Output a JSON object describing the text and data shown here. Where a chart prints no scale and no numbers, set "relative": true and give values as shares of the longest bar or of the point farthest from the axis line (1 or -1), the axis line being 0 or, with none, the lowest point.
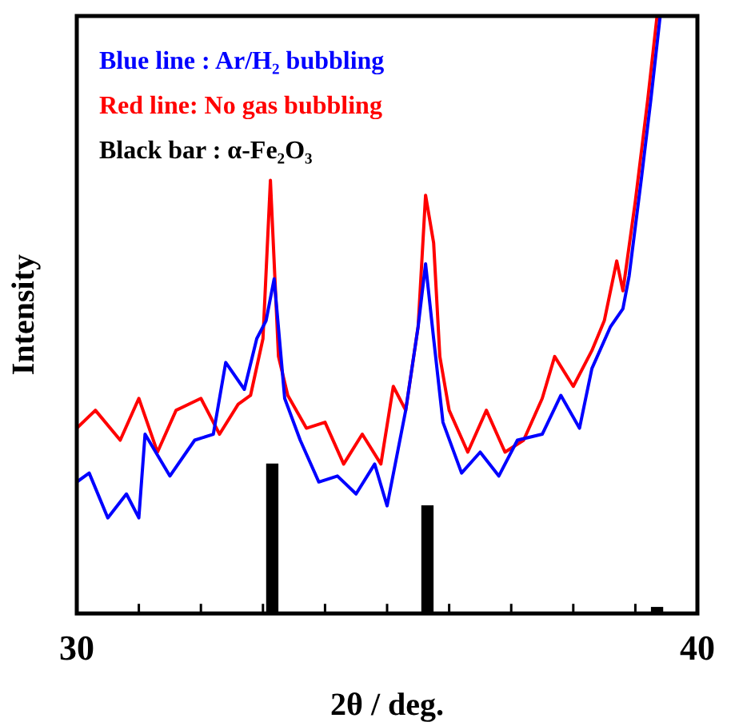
{
  "chart_data": {
    "type": "line",
    "relative": true,
    "xlabel": "2θ / deg.",
    "ylabel": "Intensity",
    "legend": "top left",
    "xlim": [
      30,
      40
    ],
    "xticks": [
      30,
      {
        "value": 31,
        "label": null
      },
      {
        "value": 32,
        "label": null
      },
      {
        "value": 33,
        "label": null
      },
      {
        "value": 34,
        "label": null
      },
      {
        "value": 35,
        "label": null
      },
      {
        "value": 36,
        "label": null
      },
      {
        "value": 37,
        "label": null
      },
      {
        "value": 38,
        "label": null
      },
      {
        "value": 39,
        "label": null
      },
      40
    ],
    "series": [
      {
        "name": "Blue line : Ar/H₂ bubbling",
        "color": "#0000ff",
        "x": [
          30.0,
          30.2,
          30.5,
          30.8,
          31.0,
          31.1,
          31.5,
          31.9,
          32.2,
          32.4,
          32.7,
          32.9,
          33.05,
          33.18,
          33.35,
          33.6,
          33.9,
          34.2,
          34.5,
          34.8,
          35.0,
          35.3,
          35.5,
          35.62,
          35.75,
          35.9,
          36.2,
          36.5,
          36.8,
          37.1,
          37.5,
          37.8,
          38.1,
          38.3,
          38.6,
          38.8,
          38.9,
          39.1,
          39.25,
          39.4
        ],
        "values": [
          0.22,
          0.235,
          0.16,
          0.2,
          0.16,
          0.3,
          0.23,
          0.29,
          0.3,
          0.42,
          0.375,
          0.46,
          0.49,
          0.56,
          0.36,
          0.29,
          0.22,
          0.23,
          0.2,
          0.25,
          0.18,
          0.34,
          0.48,
          0.585,
          0.46,
          0.32,
          0.235,
          0.27,
          0.23,
          0.29,
          0.3,
          0.365,
          0.31,
          0.41,
          0.48,
          0.51,
          0.565,
          0.73,
          0.86,
          1.0
        ]
      },
      {
        "name": "Red line: No gas bubbling",
        "color": "#ff0000",
        "x": [
          30.0,
          30.3,
          30.7,
          31.0,
          31.3,
          31.6,
          32.0,
          32.3,
          32.6,
          32.8,
          33.0,
          33.12,
          33.25,
          33.4,
          33.7,
          34.0,
          34.3,
          34.6,
          34.9,
          35.1,
          35.3,
          35.5,
          35.62,
          35.75,
          35.85,
          36.0,
          36.3,
          36.6,
          36.9,
          37.2,
          37.5,
          37.7,
          38.0,
          38.3,
          38.5,
          38.7,
          38.8,
          39.0,
          39.2,
          39.35
        ],
        "values": [
          0.31,
          0.34,
          0.29,
          0.36,
          0.27,
          0.34,
          0.36,
          0.3,
          0.35,
          0.365,
          0.46,
          0.725,
          0.43,
          0.365,
          0.31,
          0.32,
          0.25,
          0.3,
          0.25,
          0.38,
          0.34,
          0.48,
          0.7,
          0.62,
          0.43,
          0.34,
          0.27,
          0.34,
          0.27,
          0.29,
          0.36,
          0.43,
          0.38,
          0.44,
          0.49,
          0.59,
          0.54,
          0.69,
          0.86,
          1.0
        ]
      },
      {
        "name": "Black bar : α-Fe₂O₃",
        "type": "bar",
        "color": "#000000",
        "x": [
          33.15,
          35.65,
          39.35
        ],
        "values": [
          0.25,
          0.18,
          0.01
        ]
      }
    ]
  }
}
